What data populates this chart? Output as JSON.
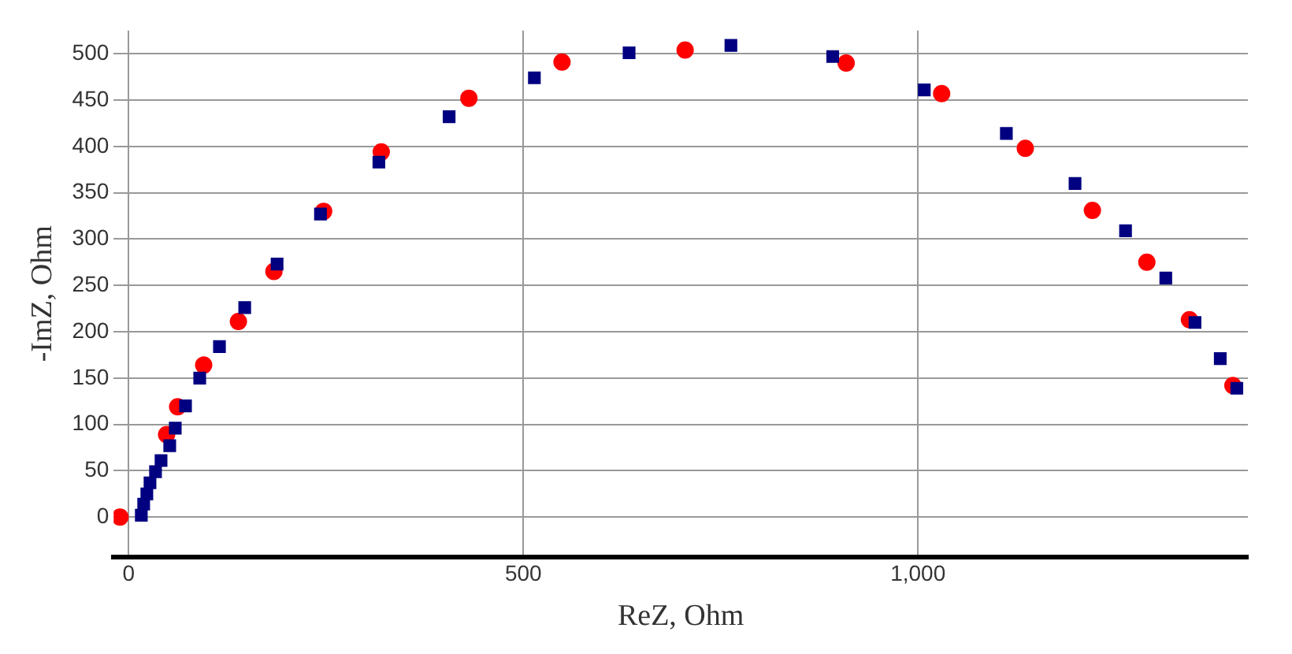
{
  "chart_data": {
    "type": "scatter",
    "xlabel": "ReZ, Ohm",
    "ylabel": "-ImZ, Ohm",
    "xlim": [
      -19,
      1418
    ],
    "ylim": [
      -43,
      525
    ],
    "xticks": [
      0,
      500,
      {
        "value": 1000,
        "label": "1,000"
      }
    ],
    "yticks": [
      0,
      50,
      100,
      150,
      200,
      250,
      300,
      350,
      400,
      450,
      500
    ],
    "grid": true,
    "legend": false,
    "series": [
      {
        "color": "#ff0000",
        "marker": "circle",
        "x": [
          -11,
          48,
          62,
          95,
          139,
          184,
          247,
          320,
          431,
          549,
          705,
          909,
          1030,
          1136,
          1221,
          1290,
          1344,
          1399
        ],
        "values": [
          0,
          89,
          119,
          164,
          211,
          265,
          330,
          394,
          452,
          491,
          504,
          490,
          457,
          398,
          331,
          275,
          213,
          142
        ]
      },
      {
        "color": "#000080",
        "marker": "square",
        "x": [
          16,
          19,
          23,
          27,
          34,
          41,
          52,
          59,
          72,
          90,
          115,
          147,
          188,
          243,
          317,
          406,
          514,
          634,
          763,
          892,
          1008,
          1112,
          1199,
          1263,
          1314,
          1351,
          1383,
          1404
        ],
        "values": [
          2,
          14,
          25,
          37,
          49,
          61,
          77,
          96,
          120,
          150,
          184,
          226,
          273,
          327,
          383,
          432,
          474,
          501,
          509,
          497,
          461,
          414,
          360,
          309,
          258,
          210,
          171,
          139
        ]
      }
    ]
  }
}
